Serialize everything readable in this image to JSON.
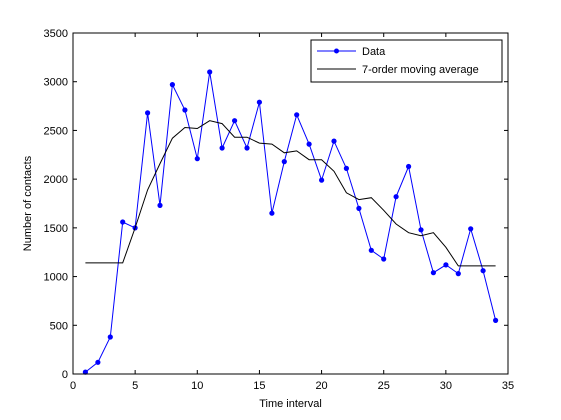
{
  "chart_data": {
    "type": "line",
    "title": "",
    "xlabel": "Time interval",
    "ylabel": "Number of contacts",
    "xlim": [
      0,
      35
    ],
    "ylim": [
      0,
      3500
    ],
    "xticks": [
      0,
      5,
      10,
      15,
      20,
      25,
      30,
      35
    ],
    "yticks": [
      0,
      500,
      1000,
      1500,
      2000,
      2500,
      3000,
      3500
    ],
    "grid": false,
    "legend_position": "top-right",
    "series": [
      {
        "name": "Data",
        "color": "#0000ff",
        "marker": "dot",
        "x": [
          1,
          2,
          3,
          4,
          5,
          6,
          7,
          8,
          9,
          10,
          11,
          12,
          13,
          14,
          15,
          16,
          17,
          18,
          19,
          20,
          21,
          22,
          23,
          24,
          25,
          26,
          27,
          28,
          29,
          30,
          31,
          32,
          33,
          34
        ],
        "y": [
          20,
          120,
          380,
          1560,
          1500,
          2680,
          1730,
          2970,
          2710,
          2210,
          3100,
          2320,
          2600,
          2320,
          2790,
          1650,
          2180,
          2660,
          2360,
          1990,
          2390,
          2110,
          1700,
          1270,
          1180,
          1820,
          2130,
          1480,
          1040,
          1120,
          1030,
          1490,
          1060,
          550
        ]
      },
      {
        "name": "7-order moving average",
        "color": "#000000",
        "marker": "none",
        "x": [
          1,
          2,
          3,
          4,
          5,
          6,
          7,
          8,
          9,
          10,
          11,
          12,
          13,
          14,
          15,
          16,
          17,
          18,
          19,
          20,
          21,
          22,
          23,
          24,
          25,
          26,
          27,
          28,
          29,
          30,
          31,
          32,
          33,
          34
        ],
        "y": [
          1140,
          1140,
          1140,
          1140,
          1500,
          1890,
          2160,
          2420,
          2530,
          2520,
          2600,
          2570,
          2430,
          2430,
          2370,
          2360,
          2270,
          2290,
          2200,
          2200,
          2080,
          1860,
          1790,
          1810,
          1680,
          1540,
          1450,
          1420,
          1450,
          1300,
          1110,
          1110,
          1110,
          1110
        ]
      }
    ]
  }
}
